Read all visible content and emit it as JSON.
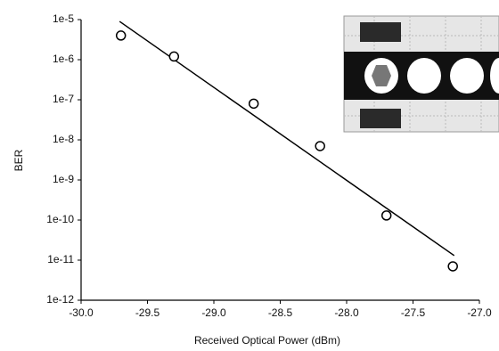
{
  "chart_data": {
    "type": "scatter",
    "x_label": "Received Optical Power (dBm)",
    "y_label": "BER",
    "ylog": true,
    "xlim": [
      -30.0,
      -27.0
    ],
    "xticks": [
      {
        "value": -30.0,
        "label": "-30.0"
      },
      -29.5,
      {
        "value": -29.0,
        "label": "-29.0"
      },
      -28.5,
      {
        "value": -28.0,
        "label": "-28.0"
      },
      -27.5,
      {
        "value": -27.0,
        "label": "-27.0"
      }
    ],
    "ylim": [
      1e-12,
      1e-05
    ],
    "yticks": [
      {
        "value": 1e-12,
        "label": "1e-12"
      },
      {
        "value": 1e-11,
        "label": "1e-11"
      },
      {
        "value": 1e-10,
        "label": "1e-10"
      },
      {
        "value": 1e-09,
        "label": "1e-9"
      },
      {
        "value": 1e-08,
        "label": "1e-8"
      },
      {
        "value": 1e-07,
        "label": "1e-7"
      },
      {
        "value": 1e-06,
        "label": "1e-6"
      },
      {
        "value": 1e-05,
        "label": "1e-5"
      }
    ],
    "series": [
      {
        "kind": "scatter",
        "color": "#000000",
        "x": [
          -29.7,
          -29.3,
          -28.7,
          -28.2,
          -27.7,
          -27.2
        ],
        "values": [
          4e-06,
          1.2e-06,
          8e-08,
          7e-09,
          1.3e-10,
          7e-12
        ]
      },
      {
        "kind": "line",
        "color": "#000000",
        "x": [
          -29.71,
          -27.19
        ],
        "values": [
          9e-06,
          1.3e-11
        ]
      }
    ]
  }
}
